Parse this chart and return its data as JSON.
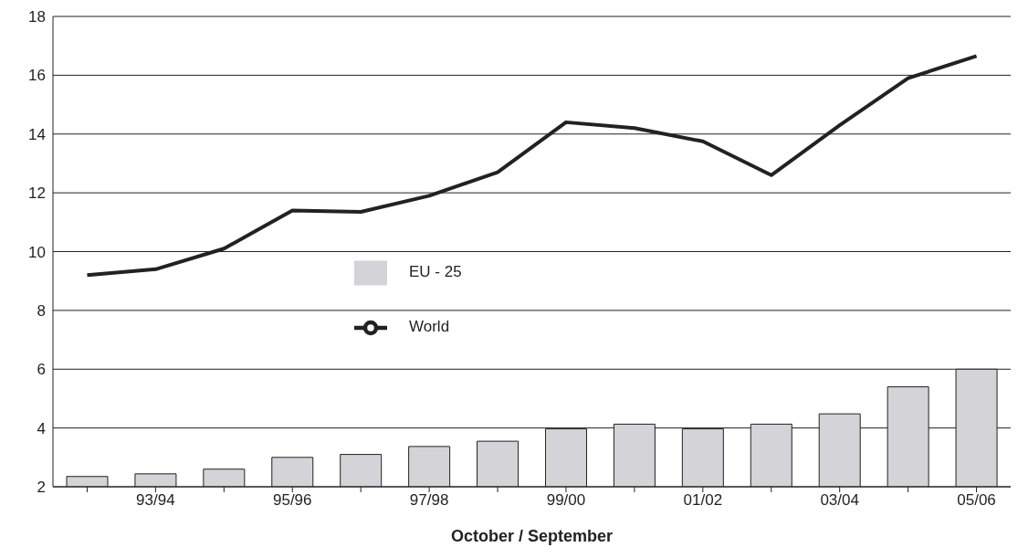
{
  "chart_data": {
    "type": "bar",
    "xlabel": "October / September",
    "categories": [
      null,
      "93/94",
      null,
      "95/96",
      null,
      "97/98",
      null,
      "99/00",
      null,
      "01/02",
      null,
      "03/04",
      null,
      "05/06"
    ],
    "series": [
      {
        "name": "EU - 25",
        "color": "#d3d3d8",
        "values": [
          2.35,
          2.44,
          2.6,
          3.0,
          3.1,
          3.37,
          3.55,
          3.97,
          4.13,
          3.97,
          4.13,
          4.48,
          5.4,
          6.0
        ]
      },
      {
        "name": "World",
        "type": "line",
        "color": "#222222",
        "values": [
          9.2,
          9.4,
          10.1,
          11.4,
          11.35,
          11.9,
          12.7,
          14.4,
          14.2,
          13.75,
          12.6,
          14.3,
          15.9,
          16.65
        ]
      }
    ],
    "ylim": [
      2,
      18
    ],
    "yticks": [
      2,
      4,
      6,
      8,
      10,
      12,
      14,
      16,
      18
    ],
    "grid": "y",
    "legend": "center",
    "marker": "none",
    "line_style": "solid"
  }
}
